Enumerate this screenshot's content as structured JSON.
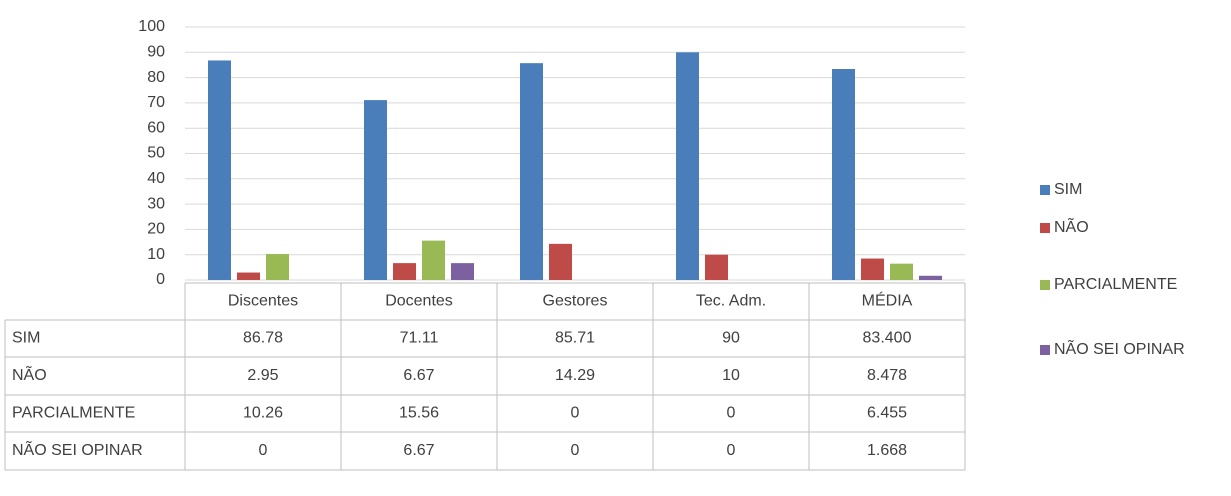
{
  "chart_data": {
    "type": "bar",
    "categories": [
      "Discentes",
      "Docentes",
      "Gestores",
      "Tec. Adm.",
      "MÉDIA"
    ],
    "series": [
      {
        "name": "SIM",
        "color": "#4a7ebb",
        "values": [
          86.78,
          71.11,
          85.71,
          90,
          83.4
        ],
        "value_labels": [
          "86.78",
          "71.11",
          "85.71",
          "90",
          "83.400"
        ]
      },
      {
        "name": "NÃO",
        "color": "#be4b48",
        "values": [
          2.95,
          6.67,
          14.29,
          10,
          8.478
        ]
      },
      {
        "name": "PARCIALMENTE",
        "color": "#98b954",
        "values": [
          10.26,
          15.56,
          0,
          0,
          6.455
        ]
      },
      {
        "name": "NÃO SEI OPINAR",
        "color": "#7d60a0",
        "values": [
          0,
          6.67,
          0,
          0,
          1.668
        ]
      }
    ],
    "ylim": [
      0,
      100
    ],
    "yticks": [
      0,
      10,
      20,
      30,
      40,
      50,
      60,
      70,
      80,
      90,
      100
    ],
    "grid": true,
    "legend": "right"
  }
}
